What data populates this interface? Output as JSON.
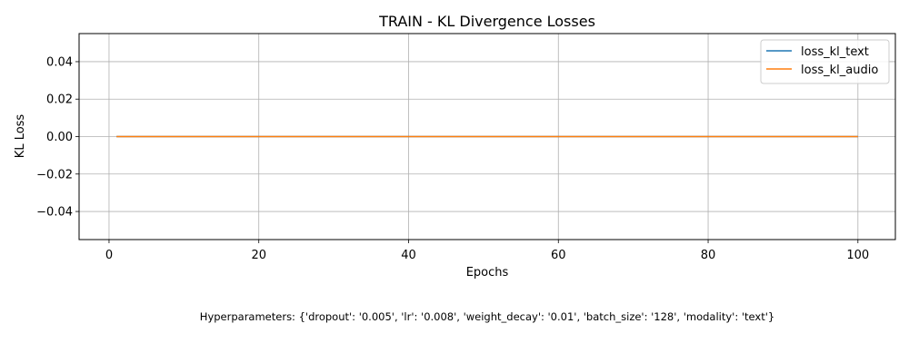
{
  "chart_data": {
    "type": "line",
    "title": "TRAIN - KL Divergence Losses",
    "xlabel": "Epochs",
    "ylabel": "KL Loss",
    "xlim": [
      -4,
      105
    ],
    "ylim": [
      -0.055,
      0.055
    ],
    "xticks": [
      0,
      20,
      40,
      60,
      80,
      100
    ],
    "yticks": [
      -0.04,
      -0.02,
      0.0,
      0.02,
      0.04
    ],
    "ytick_labels": [
      "−0.04",
      "−0.02",
      "0.00",
      "0.02",
      "0.04"
    ],
    "grid": true,
    "legend_position": "top-right",
    "series": [
      {
        "name": "loss_kl_text",
        "color": "#1f77b4",
        "x": [
          1,
          100
        ],
        "y": [
          0.0,
          0.0
        ]
      },
      {
        "name": "loss_kl_audio",
        "color": "#ff7f0e",
        "x": [
          1,
          100
        ],
        "y": [
          0.0,
          0.0
        ]
      }
    ]
  },
  "footnote": "Hyperparameters: {'dropout': '0.005', 'lr': '0.008', 'weight_decay': '0.01', 'batch_size': '128', 'modality': 'text'}"
}
